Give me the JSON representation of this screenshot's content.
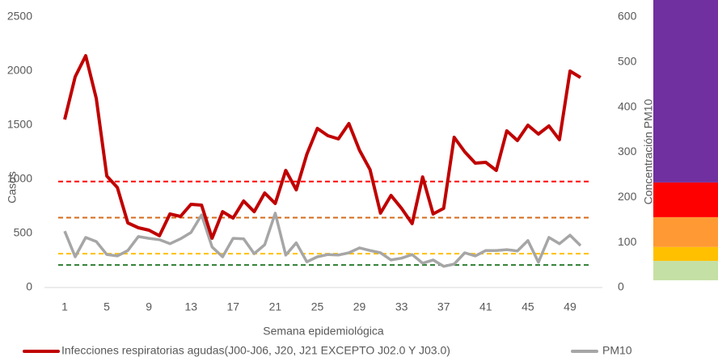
{
  "chart_data": {
    "type": "line",
    "x_label": "Semana epidemiológica",
    "y_label": "Casos",
    "y2_label": "Concentración PM10",
    "categories": [
      "1",
      null,
      null,
      null,
      "5",
      null,
      null,
      null,
      "9",
      null,
      null,
      null,
      "13",
      null,
      null,
      null,
      "17",
      null,
      null,
      null,
      "21",
      null,
      null,
      null,
      "25",
      null,
      null,
      null,
      "29",
      null,
      null,
      null,
      "33",
      null,
      null,
      null,
      "37",
      null,
      null,
      null,
      "41",
      null,
      null,
      null,
      "45",
      null,
      null,
      null,
      "49",
      null
    ],
    "ylim": [
      0,
      2500
    ],
    "yticks": [
      0,
      500,
      1000,
      1500,
      2000,
      2500
    ],
    "y2lim": [
      0,
      600
    ],
    "y2ticks": [
      0,
      100,
      200,
      300,
      400,
      500,
      600
    ],
    "series": [
      {
        "name": "Infecciones respiratorias agudas(J00-J06, J20, J21 EXCEPTO J02.0 Y J03.0)",
        "color": "#c00000",
        "values": [
          1552,
          1948,
          2142,
          1746,
          1030,
          925,
          597,
          552,
          530,
          478,
          680,
          657,
          769,
          761,
          455,
          701,
          642,
          799,
          701,
          873,
          776,
          1082,
          903,
          1231,
          1470,
          1403,
          1373,
          1515,
          1269,
          1090,
          687,
          851,
          731,
          590,
          1022,
          680,
          731,
          1388,
          1254,
          1149,
          1157,
          1082,
          1448,
          1358,
          1500,
          1418,
          1493,
          1366,
          2000,
          1940
        ]
      },
      {
        "name": "PM10",
        "color": "#a6a6a6",
        "axis": "y2",
        "values": [
          125,
          68,
          111,
          102,
          73,
          70,
          82,
          113,
          109,
          106,
          97,
          108,
          122,
          161,
          90,
          68,
          109,
          108,
          75,
          95,
          165,
          72,
          99,
          57,
          68,
          73,
          72,
          77,
          88,
          82,
          77,
          61,
          65,
          73,
          54,
          61,
          47,
          52,
          77,
          70,
          82,
          82,
          84,
          81,
          104,
          56,
          111,
          97,
          116,
          93
        ]
      }
    ],
    "thresholds": [
      {
        "value": 50,
        "color": "#2e7d32"
      },
      {
        "value": 75,
        "color": "#ffc000"
      },
      {
        "value": 155,
        "color": "#d46a1a"
      },
      {
        "value": 235,
        "color": "#ff0000"
      }
    ],
    "bands": [
      {
        "from": 16,
        "to": 59,
        "color": "#c5e0a5"
      },
      {
        "from": 59,
        "to": 90,
        "color": "#ffc000"
      },
      {
        "from": 90,
        "to": 156,
        "color": "#ff9933"
      },
      {
        "from": 156,
        "to": 233,
        "color": "#ff0000"
      },
      {
        "from": 233,
        "to": 640,
        "color": "#7030a0"
      }
    ]
  }
}
